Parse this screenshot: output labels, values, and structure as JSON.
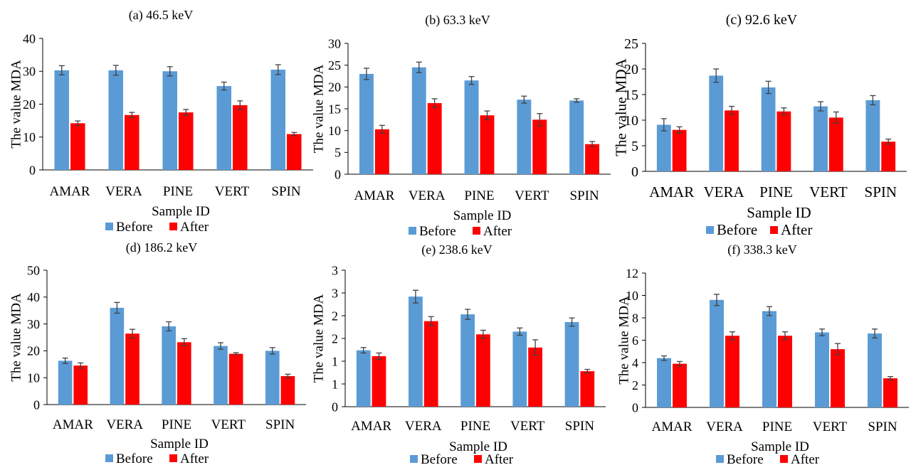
{
  "colors": {
    "before": "#5b9bd5",
    "after": "#ff0000",
    "axis": "#000000",
    "error": "#404040"
  },
  "chart_data": [
    {
      "type": "bar",
      "title": "(a) 46.5 keV",
      "xlabel": "Sample ID",
      "ylabel": "The value MDA",
      "categories": [
        "AMAR",
        "VERA",
        "PINE",
        "VERT",
        "SPIN"
      ],
      "ylim": [
        0,
        40
      ],
      "yticks": [
        "0",
        "10",
        "20",
        "30",
        "40"
      ],
      "legend_position": "bottom",
      "series": [
        {
          "name": "Before",
          "values": [
            30.3,
            30.3,
            30.0,
            25.5,
            30.5
          ],
          "errors": [
            1.4,
            1.5,
            1.4,
            1.2,
            1.5
          ]
        },
        {
          "name": "After",
          "values": [
            14.2,
            16.7,
            17.5,
            19.7,
            10.9
          ],
          "errors": [
            0.7,
            0.8,
            0.9,
            1.3,
            0.5
          ]
        }
      ]
    },
    {
      "type": "bar",
      "title": "(b) 63.3 keV",
      "xlabel": "Sample ID",
      "ylabel": "The value MDA",
      "categories": [
        "AMAR",
        "VERA",
        "PINE",
        "VERT",
        "SPIN"
      ],
      "ylim": [
        0,
        30
      ],
      "yticks": [
        "0",
        "5",
        "10",
        "15",
        "20",
        "25",
        "30"
      ],
      "legend_position": "bottom",
      "series": [
        {
          "name": "Before",
          "values": [
            23.0,
            24.5,
            21.5,
            17.1,
            16.9
          ],
          "errors": [
            1.3,
            1.2,
            0.9,
            0.8,
            0.4
          ]
        },
        {
          "name": "After",
          "values": [
            10.3,
            16.3,
            13.5,
            12.5,
            6.9
          ],
          "errors": [
            0.9,
            1.0,
            1.0,
            1.4,
            0.6
          ]
        }
      ]
    },
    {
      "type": "bar",
      "title": "(c) 92.6 keV",
      "xlabel": "Sample ID",
      "ylabel": "The value MDA",
      "categories": [
        "AMAR",
        "VERA",
        "PINE",
        "VERT",
        "SPIN"
      ],
      "ylim": [
        0,
        25
      ],
      "yticks": [
        "0",
        "5",
        "10",
        "15",
        "20",
        "25"
      ],
      "legend_position": "bottom",
      "series": [
        {
          "name": "Before",
          "values": [
            9.1,
            18.7,
            16.4,
            12.7,
            13.9
          ],
          "errors": [
            1.2,
            1.3,
            1.2,
            0.9,
            0.9
          ]
        },
        {
          "name": "After",
          "values": [
            8.1,
            11.9,
            11.7,
            10.5,
            5.8
          ],
          "errors": [
            0.6,
            0.8,
            0.7,
            1.1,
            0.5
          ]
        }
      ]
    },
    {
      "type": "bar",
      "title": "(d) 186.2 keV",
      "xlabel": "Sample ID",
      "ylabel": "The value MDA",
      "categories": [
        "AMAR",
        "VERA",
        "PINE",
        "VERT",
        "SPIN"
      ],
      "ylim": [
        0,
        50
      ],
      "yticks": [
        "0",
        "10",
        "20",
        "30",
        "40",
        "50"
      ],
      "legend_position": "bottom",
      "series": [
        {
          "name": "Before",
          "values": [
            16.3,
            36.0,
            29.1,
            21.8,
            20.0
          ],
          "errors": [
            1.0,
            2.0,
            1.7,
            1.2,
            1.2
          ]
        },
        {
          "name": "After",
          "values": [
            14.5,
            26.4,
            23.2,
            18.9,
            10.6
          ],
          "errors": [
            1.0,
            1.6,
            1.3,
            0.4,
            0.7
          ]
        }
      ]
    },
    {
      "type": "bar",
      "title": "(e) 238.6 keV",
      "xlabel": "Sample ID",
      "ylabel": "The value MDA",
      "categories": [
        "AMAR",
        "VERA",
        "PINE",
        "VERT",
        "SPIN"
      ],
      "ylim": [
        0,
        3
      ],
      "yticks": [
        "0",
        "1",
        "1",
        "2",
        "2",
        "3",
        "3"
      ],
      "legend_position": "bottom",
      "series": [
        {
          "name": "Before",
          "values": [
            1.24,
            2.42,
            2.03,
            1.65,
            1.86
          ],
          "errors": [
            0.06,
            0.14,
            0.11,
            0.08,
            0.09
          ]
        },
        {
          "name": "After",
          "values": [
            1.11,
            1.88,
            1.59,
            1.3,
            0.78
          ],
          "errors": [
            0.07,
            0.1,
            0.09,
            0.17,
            0.04
          ]
        }
      ]
    },
    {
      "type": "bar",
      "title": "(f) 338.3 keV",
      "xlabel": "Sample ID",
      "ylabel": "The value MDA",
      "categories": [
        "AMAR",
        "VERA",
        "PINE",
        "VERT",
        "SPIN"
      ],
      "ylim": [
        0,
        12
      ],
      "yticks": [
        "0",
        "2",
        "4",
        "6",
        "8",
        "10",
        "12"
      ],
      "legend_position": "bottom",
      "series": [
        {
          "name": "Before",
          "values": [
            4.4,
            9.6,
            8.6,
            6.7,
            6.6
          ],
          "errors": [
            0.2,
            0.5,
            0.4,
            0.3,
            0.4
          ]
        },
        {
          "name": "After",
          "values": [
            3.9,
            6.4,
            6.4,
            5.2,
            2.6
          ],
          "errors": [
            0.2,
            0.35,
            0.35,
            0.5,
            0.15
          ]
        }
      ]
    }
  ]
}
